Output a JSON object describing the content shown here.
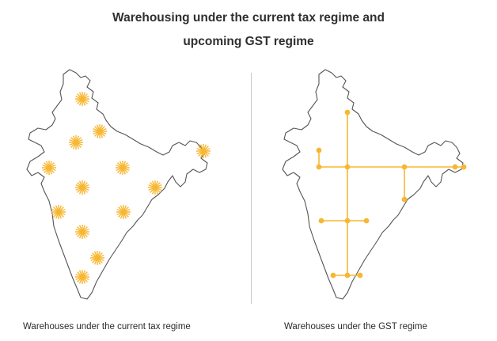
{
  "title": {
    "line1": "Warehousing under the current tax regime and",
    "line2": "upcoming GST regime"
  },
  "panels": {
    "left": {
      "caption": "Warehouses under the current tax regime",
      "marker": "starburst"
    },
    "right": {
      "caption": "Warehouses under the GST regime",
      "marker": "hub-network"
    }
  },
  "colors": {
    "accent": "#f7b733",
    "outline": "#555555",
    "text": "#2b2b2b",
    "divider": "#c8c8c8"
  }
}
